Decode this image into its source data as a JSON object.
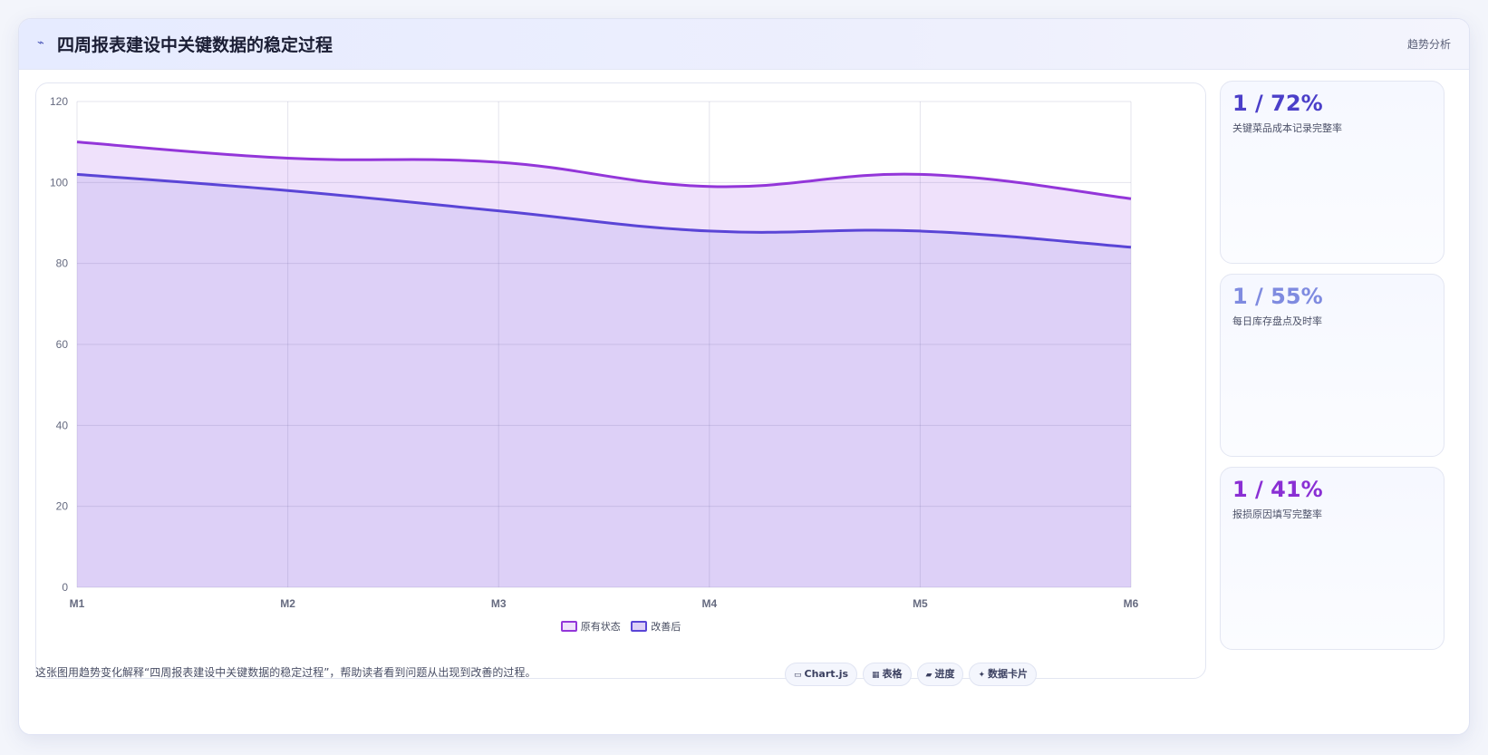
{
  "header": {
    "title": "四周报表建设中关键数据的稳定过程",
    "tag": "趋势分析",
    "icon": "trend-line-icon"
  },
  "chart_data": {
    "type": "area",
    "categories": [
      "M1",
      "M2",
      "M3",
      "M4",
      "M5",
      "M6"
    ],
    "series": [
      {
        "name": "原有状态",
        "values": [
          110,
          106,
          105,
          99,
          102,
          96
        ],
        "color": "#9336d9",
        "fill": "#efe1fb"
      },
      {
        "name": "改善后",
        "values": [
          102,
          98,
          93,
          88,
          88,
          84
        ],
        "color": "#5a45d6",
        "fill": "#ddd0f7"
      }
    ],
    "ylim": [
      0,
      120
    ],
    "yticks": [
      0,
      20,
      40,
      60,
      80,
      100,
      120
    ],
    "grid": true,
    "legend_position": "bottom"
  },
  "kpis": [
    {
      "value": "1 / 72%",
      "label": "关键菜品成本记录完整率",
      "color": "#4b3fc9"
    },
    {
      "value": "1 / 55%",
      "label": "每日库存盘点及时率",
      "color": "#7f8be0"
    },
    {
      "value": "1 / 41%",
      "label": "报损原因填写完整率",
      "color": "#8a2fd4"
    }
  ],
  "footnote": "这张图用趋势变化解释“四周报表建设中关键数据的稳定过程”，帮助读者看到问题从出现到改善的过程。",
  "pills": [
    {
      "icon": "▭",
      "label": "Chart.js"
    },
    {
      "icon": "▦",
      "label": "表格"
    },
    {
      "icon": "▰",
      "label": "进度"
    },
    {
      "icon": "✦",
      "label": "数据卡片"
    }
  ]
}
